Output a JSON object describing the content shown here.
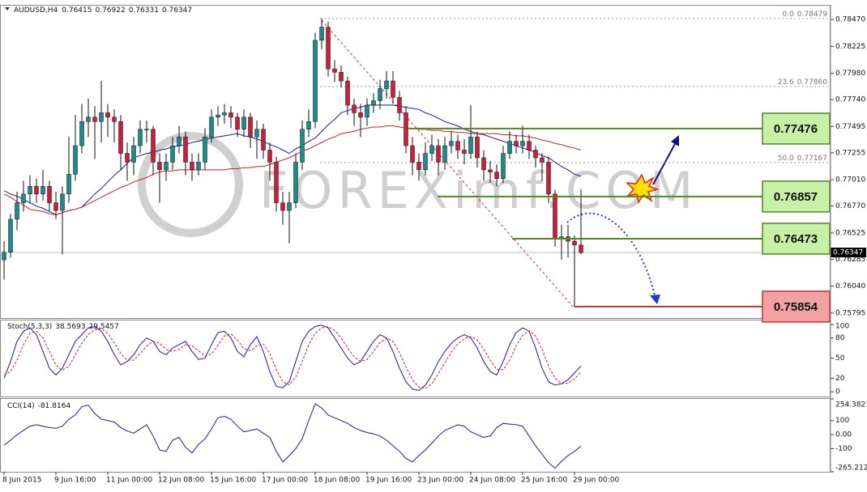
{
  "chart_data": [
    {
      "type": "candlestick",
      "symbol": "AUDUSD,H4",
      "watermark": "FOREXimf.COM",
      "up_color": "#1f8a8a",
      "down_color": "#c8203c",
      "categories": [
        "8 Jun 2015",
        null,
        null,
        null,
        null,
        null,
        null,
        null,
        "9 Jun 16:00",
        null,
        null,
        null,
        null,
        null,
        null,
        null,
        "11 Jun 00:00",
        null,
        null,
        null,
        null,
        null,
        null,
        null,
        "12 Jun 08:00",
        null,
        null,
        null,
        null,
        null,
        null,
        null,
        "15 Jun 16:00",
        null,
        null,
        null,
        null,
        null,
        null,
        null,
        "17 Jun 00:00",
        null,
        null,
        null,
        null,
        null,
        null,
        null,
        "18 Jun 08:00",
        null,
        null,
        null,
        null,
        null,
        null,
        null,
        "19 Jun 16:00",
        null,
        null,
        null,
        null,
        null,
        null,
        null,
        "23 Jun 00:00",
        null,
        null,
        null,
        null,
        null,
        null,
        null,
        "24 Jun 08:00",
        null,
        null,
        null,
        null,
        null,
        null,
        null,
        "25 Jun 16:00",
        null,
        null,
        null,
        null,
        null,
        null,
        null,
        "29 Jun 00:00",
        null
      ],
      "open": [
        0.7628,
        0.7635,
        0.7665,
        0.768,
        0.7688,
        0.7695,
        0.7688,
        0.7695,
        0.768,
        0.7673,
        0.7688,
        0.7706,
        0.7732,
        0.7754,
        0.7758,
        0.7754,
        0.7762,
        0.7758,
        0.7754,
        0.7725,
        0.7717,
        0.7732,
        0.7747,
        0.7747,
        0.7717,
        0.771,
        0.7717,
        0.7732,
        0.774,
        0.7717,
        0.771,
        0.7717,
        0.774,
        0.7758,
        0.776,
        0.7762,
        0.7758,
        0.7747,
        0.7758,
        0.774,
        0.7747,
        0.7728,
        0.7717,
        0.768,
        0.7673,
        0.768,
        0.7717,
        0.7747,
        0.7754,
        0.7828,
        0.784,
        0.7802,
        0.7799,
        0.7791,
        0.7769,
        0.7762,
        0.7758,
        0.7769,
        0.7773,
        0.7784,
        0.7791,
        0.7776,
        0.7762,
        0.7732,
        0.7717,
        0.771,
        0.7725,
        0.7732,
        0.7717,
        0.7732,
        0.7736,
        0.7728,
        0.7725,
        0.774,
        0.7721,
        0.771,
        0.7708,
        0.7702,
        0.7725,
        0.7736,
        0.7732,
        0.7736,
        0.7728,
        0.7721,
        0.7717,
        0.7688,
        0.7647,
        0.7649,
        0.7645,
        0.76415
      ],
      "high": [
        0.7645,
        0.767,
        0.769,
        0.77,
        0.7705,
        0.7702,
        0.771,
        0.77,
        0.769,
        0.7695,
        0.774,
        0.776,
        0.777,
        0.7775,
        0.7768,
        0.7791,
        0.777,
        0.7765,
        0.776,
        0.7735,
        0.774,
        0.7755,
        0.7755,
        0.775,
        0.7725,
        0.7725,
        0.774,
        0.775,
        0.7745,
        0.7725,
        0.7725,
        0.7748,
        0.7765,
        0.7768,
        0.777,
        0.7768,
        0.7762,
        0.7765,
        0.7762,
        0.7755,
        0.7752,
        0.7735,
        0.7722,
        0.769,
        0.769,
        0.7725,
        0.7755,
        0.7765,
        0.7835,
        0.7848,
        0.7845,
        0.781,
        0.7805,
        0.7795,
        0.7775,
        0.777,
        0.7775,
        0.778,
        0.7792,
        0.78,
        0.78,
        0.7782,
        0.7768,
        0.774,
        0.7725,
        0.7735,
        0.7742,
        0.7738,
        0.774,
        0.7745,
        0.7742,
        0.7738,
        0.7769,
        0.7745,
        0.7728,
        0.7718,
        0.7715,
        0.7732,
        0.7745,
        0.7742,
        0.775,
        0.7742,
        0.7732,
        0.7725,
        0.7722,
        0.7692,
        0.766,
        0.766,
        0.765,
        0.76922
      ],
      "low": [
        0.761,
        0.763,
        0.7655,
        0.7672,
        0.768,
        0.768,
        0.7682,
        0.7672,
        0.7665,
        0.7633,
        0.768,
        0.77,
        0.7725,
        0.774,
        0.772,
        0.7735,
        0.774,
        0.7735,
        0.771,
        0.77,
        0.7705,
        0.7725,
        0.7735,
        0.7705,
        0.768,
        0.77,
        0.771,
        0.7725,
        0.7705,
        0.77,
        0.7705,
        0.771,
        0.7735,
        0.775,
        0.7752,
        0.7748,
        0.774,
        0.774,
        0.773,
        0.772,
        0.772,
        0.77,
        0.7672,
        0.766,
        0.7643,
        0.7675,
        0.771,
        0.774,
        0.7748,
        0.782,
        0.7795,
        0.779,
        0.7785,
        0.776,
        0.775,
        0.774,
        0.775,
        0.7762,
        0.7765,
        0.7775,
        0.777,
        0.7755,
        0.7725,
        0.7705,
        0.77,
        0.7705,
        0.7718,
        0.7705,
        0.771,
        0.7725,
        0.772,
        0.7715,
        0.772,
        0.7712,
        0.77,
        0.7698,
        0.7695,
        0.7698,
        0.772,
        0.7725,
        0.7725,
        0.772,
        0.7712,
        0.77,
        0.768,
        0.764,
        0.7628,
        0.763,
        0.7585,
        0.76331
      ],
      "close": [
        0.7635,
        0.7665,
        0.768,
        0.7688,
        0.7695,
        0.7688,
        0.7695,
        0.768,
        0.7673,
        0.7688,
        0.7706,
        0.7732,
        0.7754,
        0.7758,
        0.7754,
        0.7762,
        0.7758,
        0.7754,
        0.7725,
        0.7717,
        0.7732,
        0.7747,
        0.7747,
        0.7717,
        0.771,
        0.7717,
        0.7732,
        0.774,
        0.7717,
        0.771,
        0.7717,
        0.774,
        0.7758,
        0.776,
        0.7762,
        0.7758,
        0.7747,
        0.7758,
        0.774,
        0.7747,
        0.7728,
        0.7717,
        0.768,
        0.7673,
        0.768,
        0.7717,
        0.7747,
        0.7754,
        0.7828,
        0.784,
        0.7802,
        0.7799,
        0.7791,
        0.7769,
        0.7762,
        0.7758,
        0.7769,
        0.7773,
        0.7784,
        0.7791,
        0.7776,
        0.7762,
        0.7732,
        0.7717,
        0.771,
        0.7725,
        0.7732,
        0.7717,
        0.7732,
        0.7736,
        0.7728,
        0.7725,
        0.774,
        0.7721,
        0.771,
        0.7708,
        0.7702,
        0.7725,
        0.7736,
        0.7732,
        0.7736,
        0.7728,
        0.7721,
        0.7717,
        0.7688,
        0.7647,
        0.7649,
        0.7645,
        0.76415,
        0.76347
      ],
      "lines": [
        {
          "color": "#1a1aa0",
          "values": [
            0.7691,
            0.7688,
            0.7686,
            0.7683,
            0.768,
            0.7677,
            0.7675,
            0.7672,
            0.7669,
            0.7671,
            0.7673,
            0.7674,
            0.7676,
            0.7682,
            0.7688,
            0.7693,
            0.7699,
            0.7705,
            0.771,
            0.7716,
            0.7721,
            0.7723,
            0.7725,
            0.7726,
            0.7728,
            0.7729,
            0.7731,
            0.7732,
            0.7733,
            0.7735,
            0.7736,
            0.7738,
            0.7739,
            0.774,
            0.7741,
            0.7742,
            0.7743,
            0.7741,
            0.774,
            0.7738,
            0.7736,
            0.7733,
            0.7731,
            0.7728,
            0.7725,
            0.7729,
            0.7732,
            0.7736,
            0.7739,
            0.7745,
            0.7751,
            0.7756,
            0.7762,
            0.7764,
            0.7766,
            0.7767,
            0.7769,
            0.7769,
            0.7769,
            0.7769,
            0.7769,
            0.7768,
            0.7767,
            0.7766,
            0.7765,
            0.7762,
            0.776,
            0.7757,
            0.7754,
            0.7752,
            0.775,
            0.7747,
            0.7745,
            0.7743,
            0.7742,
            0.774,
            0.7738,
            0.7736,
            0.7734,
            0.7732,
            0.773,
            0.7728,
            0.7726,
            0.7723,
            0.7721,
            0.7717,
            0.7713,
            0.771,
            0.7706,
            0.7704
          ]
        },
        {
          "color": "#d42020",
          "values": [
            0.7688,
            0.7685,
            0.7681,
            0.7678,
            0.7674,
            0.7673,
            0.7672,
            0.767,
            0.7669,
            0.7671,
            0.7673,
            0.7674,
            0.7676,
            0.7679,
            0.7682,
            0.7685,
            0.7688,
            0.7691,
            0.7694,
            0.7696,
            0.7699,
            0.7701,
            0.7703,
            0.7706,
            0.7708,
            0.7709,
            0.7709,
            0.771,
            0.771,
            0.771,
            0.771,
            0.771,
            0.771,
            0.771,
            0.771,
            0.7711,
            0.7711,
            0.7712,
            0.7712,
            0.7713,
            0.7713,
            0.7715,
            0.7717,
            0.7719,
            0.7721,
            0.7724,
            0.7727,
            0.7729,
            0.7732,
            0.7735,
            0.7738,
            0.774,
            0.7743,
            0.7744,
            0.7745,
            0.7747,
            0.7748,
            0.7749,
            0.7749,
            0.775,
            0.775,
            0.7749,
            0.7748,
            0.7748,
            0.7747,
            0.7747,
            0.7746,
            0.7746,
            0.7745,
            0.7745,
            0.7744,
            0.7744,
            0.7743,
            0.7743,
            0.7743,
            0.7743,
            0.7743,
            0.7742,
            0.7742,
            0.7741,
            0.7741,
            0.774,
            0.7739,
            0.7737,
            0.7736,
            0.7734,
            0.7733,
            0.7731,
            0.773,
            0.7728
          ]
        }
      ],
      "ylim": [
        0.7575,
        0.78596
      ],
      "yticks": [
        {
          "value": 0.7847,
          "label": "0.78470"
        },
        0.78225,
        {
          "value": 0.7798,
          "label": "0.77980"
        },
        {
          "value": 0.7774,
          "label": "0.77740"
        },
        0.77495,
        0.77255,
        {
          "value": 0.7701,
          "label": "0.77010"
        },
        {
          "value": 0.7677,
          "label": "0.76770"
        },
        0.76525,
        0.76285,
        {
          "value": 0.7604,
          "label": "0.76040"
        },
        0.75795
      ],
      "fib": [
        {
          "level": {
            "value": 0,
            "label": "0.0"
          },
          "price": 0.78479
        },
        {
          "level": 23.6,
          "price": {
            "value": 0.7786,
            "label": "0.77860"
          }
        },
        {
          "level": {
            "value": 50,
            "label": "50.0"
          },
          "price": 0.77167
        }
      ],
      "levels": [
        {
          "value": 0.77476,
          "color": "#4e8a22",
          "fill": "#c8f0a6"
        },
        {
          "value": 0.76857,
          "color": "#4e8a22",
          "fill": "#c8f0a6"
        },
        {
          "value": 0.76473,
          "color": "#4e8a22",
          "fill": "#c8f0a6"
        },
        {
          "value": 0.75854,
          "color": "#c83030",
          "fill": "#f2a2a2"
        }
      ]
    },
    {
      "type": "line",
      "title": "Stoch(5,3,3)",
      "series": [
        {
          "color": "#1a1aa0",
          "values": [
            20,
            45,
            75,
            90,
            95,
            85,
            60,
            35,
            25,
            35,
            55,
            75,
            85,
            95,
            97,
            90,
            75,
            55,
            40,
            45,
            55,
            70,
            80,
            75,
            60,
            55,
            65,
            70,
            75,
            60,
            48,
            50,
            70,
            88,
            90,
            80,
            60,
            52,
            70,
            82,
            60,
            30,
            8,
            6,
            15,
            45,
            75,
            90,
            97,
            99,
            95,
            80,
            65,
            50,
            40,
            45,
            60,
            75,
            85,
            80,
            60,
            35,
            15,
            4,
            2,
            10,
            25,
            45,
            60,
            72,
            80,
            85,
            80,
            65,
            45,
            30,
            25,
            45,
            70,
            88,
            95,
            90,
            65,
            35,
            15,
            10,
            12,
            18,
            28,
            38.5693
          ]
        },
        {
          "color": "#d42020",
          "dashed": true,
          "values": [
            25,
            30,
            47,
            70,
            87,
            90,
            80,
            60,
            40,
            32,
            38,
            55,
            72,
            85,
            92,
            94,
            87,
            73,
            57,
            47,
            47,
            57,
            68,
            75,
            72,
            63,
            60,
            63,
            70,
            68,
            61,
            53,
            56,
            69,
            83,
            86,
            77,
            64,
            61,
            68,
            71,
            57,
            33,
            15,
            10,
            22,
            45,
            70,
            87,
            95,
            97,
            91,
            80,
            65,
            52,
            45,
            48,
            60,
            73,
            80,
            75,
            58,
            37,
            18,
            7,
            5,
            12,
            27,
            43,
            59,
            71,
            79,
            82,
            77,
            63,
            47,
            33,
            33,
            47,
            68,
            84,
            91,
            83,
            63,
            38,
            20,
            12,
            13,
            19,
            29.5457
          ]
        }
      ],
      "ylim": [
        -7,
        106
      ],
      "yticks": [
        100,
        80,
        50,
        20,
        0
      ]
    },
    {
      "type": "line",
      "title": "CCI(14)",
      "series": [
        {
          "color": "#1a1aa0",
          "values": [
            -75,
            -40,
            0,
            30,
            60,
            70,
            60,
            50,
            45,
            60,
            110,
            140,
            200,
            210,
            150,
            110,
            100,
            90,
            50,
            25,
            10,
            40,
            70,
            -10,
            -110,
            -120,
            -40,
            -20,
            -90,
            -130,
            -70,
            -30,
            40,
            120,
            130,
            110,
            60,
            20,
            30,
            40,
            10,
            -20,
            -120,
            -195,
            -150,
            -100,
            -30,
            100,
            220,
            190,
            140,
            120,
            100,
            80,
            50,
            30,
            15,
            5,
            -10,
            -40,
            -80,
            -120,
            -170,
            -195,
            -150,
            -110,
            -60,
            -10,
            30,
            50,
            70,
            60,
            20,
            0,
            -20,
            -10,
            50,
            80,
            75,
            70,
            60,
            -10,
            -80,
            -140,
            -200,
            -240,
            -190,
            -150,
            -120,
            -81.8164
          ]
        }
      ],
      "ylim": [
        -265.2126,
        254.3823
      ],
      "yticks": [
        254.3823,
        100,
        {
          "value": 0,
          "label": "0.00"
        },
        -100,
        -265.2126
      ]
    }
  ]
}
